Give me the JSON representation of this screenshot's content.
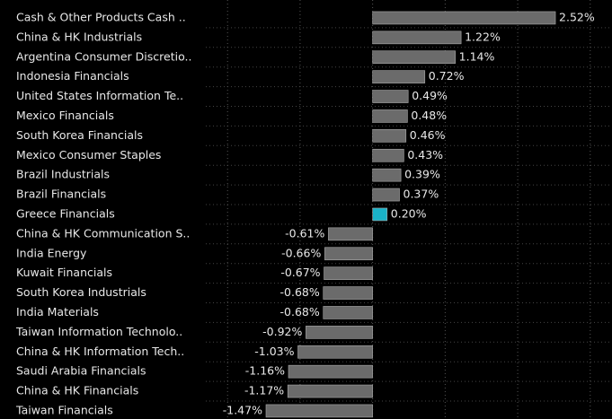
{
  "chart_data": {
    "type": "barh",
    "categories": [
      "Cash & Other Products Cash ..",
      "China & HK Industrials",
      "Argentina Consumer Discretio..",
      "Indonesia Financials",
      "United States Information Te..",
      "Mexico Financials",
      "South Korea Financials",
      "Mexico Consumer Staples",
      "Brazil Industrials",
      "Brazil Financials",
      "Greece Financials",
      "China & HK Communication S..",
      "India Energy",
      "Kuwait Financials",
      "South Korea Industrials",
      "India Materials",
      "Taiwan Information Technolo..",
      "China & HK Information Tech..",
      "Saudi Arabia Financials",
      "China & HK Financials",
      "Taiwan Financials"
    ],
    "values": [
      2.52,
      1.22,
      1.14,
      0.72,
      0.49,
      0.48,
      0.46,
      0.43,
      0.39,
      0.37,
      0.2,
      -0.61,
      -0.66,
      -0.67,
      -0.68,
      -0.68,
      -0.92,
      -1.03,
      -1.16,
      -1.17,
      -1.47
    ],
    "value_labels": [
      "2.52%",
      "1.22%",
      "1.14%",
      "0.72%",
      "0.49%",
      "0.48%",
      "0.46%",
      "0.43%",
      "0.39%",
      "0.37%",
      "0.20%",
      "-0.61%",
      "-0.66%",
      "-0.67%",
      "-0.68%",
      "-0.68%",
      "-0.92%",
      "-1.03%",
      "-1.16%",
      "-1.17%",
      "-1.47%"
    ],
    "colors": [
      "#6b6b6b",
      "#6b6b6b",
      "#6b6b6b",
      "#6b6b6b",
      "#6b6b6b",
      "#6b6b6b",
      "#6b6b6b",
      "#6b6b6b",
      "#6b6b6b",
      "#6b6b6b",
      "#1ab3c8",
      "#6b6b6b",
      "#6b6b6b",
      "#6b6b6b",
      "#6b6b6b",
      "#6b6b6b",
      "#6b6b6b",
      "#6b6b6b",
      "#6b6b6b",
      "#6b6b6b",
      "#6b6b6b"
    ],
    "xlim": [
      -2.3,
      3.3
    ],
    "xticks": [
      -2,
      -1,
      0,
      1,
      2,
      3
    ],
    "grid": true
  }
}
